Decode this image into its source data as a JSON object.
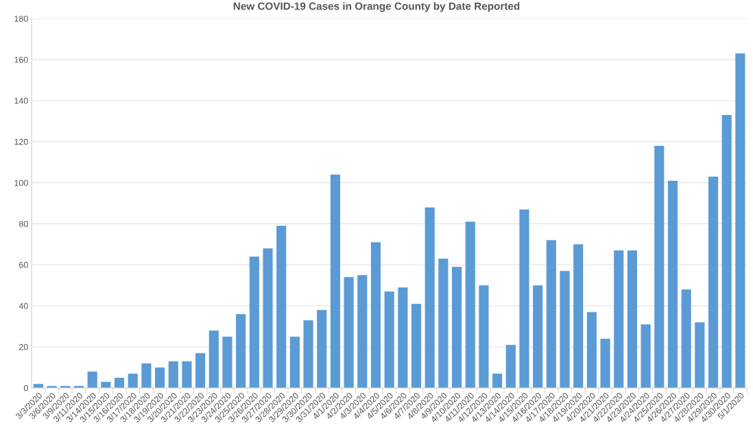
{
  "chart_data": {
    "type": "bar",
    "title": "New COVID-19 Cases in Orange County by Date Reported",
    "categories": [
      "3/3/2020",
      "3/6/2020",
      "3/9/2020",
      "3/11/2020",
      "3/14/2020",
      "3/15/2020",
      "3/16/2020",
      "3/17/2020",
      "3/18/2020",
      "3/19/2020",
      "3/20/2020",
      "3/21/2020",
      "3/22/2020",
      "3/23/2020",
      "3/24/2020",
      "3/25/2020",
      "3/26/2020",
      "3/27/2020",
      "3/28/2020",
      "3/29/2020",
      "3/30/2020",
      "3/31/2020",
      "4/1/2020",
      "4/2/2020",
      "4/3/2020",
      "4/4/2020",
      "4/5/2020",
      "4/6/2020",
      "4/7/2020",
      "4/8/2020",
      "4/9/2020",
      "4/10/2020",
      "4/11/2020",
      "4/12/2020",
      "4/13/2020",
      "4/14/2020",
      "4/15/2020",
      "4/16/2020",
      "4/17/2020",
      "4/18/2020",
      "4/19/2020",
      "4/20/2020",
      "4/21/2020",
      "4/22/2020",
      "4/23/2020",
      "4/24/2020",
      "4/25/2020",
      "4/26/2020",
      "4/27/2020",
      "4/28/2020",
      "4/29/2020",
      "4/30/2020",
      "5/1/2020"
    ],
    "values": [
      2,
      1,
      1,
      1,
      8,
      3,
      5,
      7,
      12,
      10,
      13,
      13,
      17,
      28,
      25,
      36,
      64,
      68,
      79,
      25,
      33,
      38,
      104,
      54,
      55,
      71,
      47,
      49,
      41,
      88,
      63,
      59,
      81,
      50,
      7,
      21,
      87,
      50,
      72,
      57,
      70,
      37,
      24,
      67,
      67,
      31,
      118,
      101,
      48,
      32,
      103,
      133,
      163
    ],
    "color": "#5b9bd5",
    "ylim": [
      0,
      180
    ],
    "yticks": [
      0,
      20,
      40,
      60,
      80,
      100,
      120,
      140,
      160,
      180
    ],
    "grid": "y",
    "legend": false
  }
}
